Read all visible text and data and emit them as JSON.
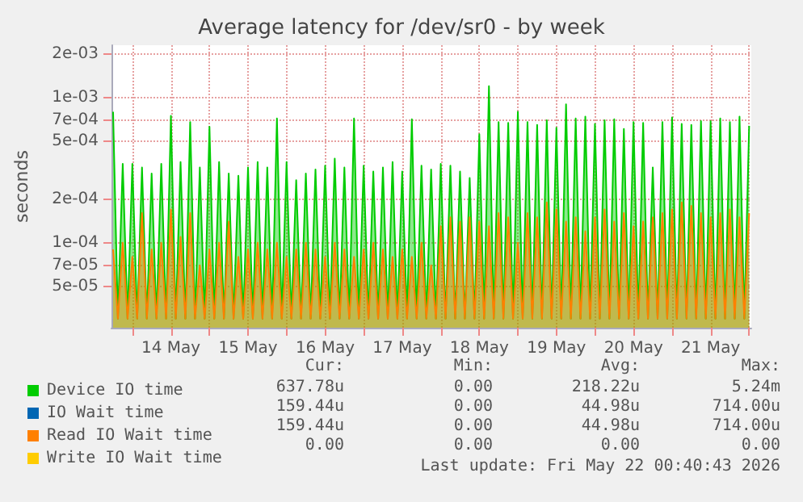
{
  "chart_data": {
    "type": "area",
    "title": "Average latency for /dev/sr0 - by week",
    "ylabel": "seconds",
    "log": "y",
    "grid": true,
    "legend": "bottom left",
    "marker": "none",
    "line_style": "solid",
    "xlim": [
      "2026-05-13T17:30",
      "2026-05-22T00:40"
    ],
    "xticks": [
      {
        "value": "2026-05-14T00:00",
        "label": null
      },
      {
        "value": "2026-05-14T12:00",
        "label": "14 May"
      },
      {
        "value": "2026-05-15T00:00",
        "label": null
      },
      {
        "value": "2026-05-15T12:00",
        "label": "15 May"
      },
      {
        "value": "2026-05-16T00:00",
        "label": null
      },
      {
        "value": "2026-05-16T12:00",
        "label": "16 May"
      },
      {
        "value": "2026-05-17T00:00",
        "label": null
      },
      {
        "value": "2026-05-17T12:00",
        "label": "17 May"
      },
      {
        "value": "2026-05-18T00:00",
        "label": null
      },
      {
        "value": "2026-05-18T12:00",
        "label": "18 May"
      },
      {
        "value": "2026-05-19T00:00",
        "label": null
      },
      {
        "value": "2026-05-19T12:00",
        "label": "19 May"
      },
      {
        "value": "2026-05-20T00:00",
        "label": null
      },
      {
        "value": "2026-05-20T12:00",
        "label": "20 May"
      },
      {
        "value": "2026-05-21T00:00",
        "label": null
      },
      {
        "value": "2026-05-21T12:00",
        "label": "21 May"
      },
      {
        "value": "2026-05-22T00:00",
        "label": null
      }
    ],
    "ylim": [
      2.6e-05,
      0.0023
    ],
    "yticks": [
      {
        "value": 5e-05,
        "label": "5e-05"
      },
      {
        "value": 7e-05,
        "label": "7e-05"
      },
      {
        "value": 0.0001,
        "label": "1e-04"
      },
      {
        "value": 0.0002,
        "label": "2e-04"
      },
      {
        "value": 0.0005,
        "label": "5e-04"
      },
      {
        "value": 0.0007,
        "label": "7e-04"
      },
      {
        "value": 0.001,
        "label": "1e-03"
      },
      {
        "value": 0.002,
        "label": "2e-03"
      }
    ],
    "x": [
      "2026-05-13T18:00",
      "2026-05-13T19:30",
      "2026-05-13T21:00",
      "2026-05-13T22:30",
      "2026-05-14T00:00",
      "2026-05-14T01:30",
      "2026-05-14T03:00",
      "2026-05-14T04:30",
      "2026-05-14T06:00",
      "2026-05-14T07:30",
      "2026-05-14T09:00",
      "2026-05-14T10:30",
      "2026-05-14T12:00",
      "2026-05-14T13:30",
      "2026-05-14T15:00",
      "2026-05-14T16:30",
      "2026-05-14T18:00",
      "2026-05-14T19:30",
      "2026-05-14T21:00",
      "2026-05-14T22:30",
      "2026-05-15T00:00",
      "2026-05-15T01:30",
      "2026-05-15T03:00",
      "2026-05-15T04:30",
      "2026-05-15T06:00",
      "2026-05-15T07:30",
      "2026-05-15T09:00",
      "2026-05-15T10:30",
      "2026-05-15T12:00",
      "2026-05-15T13:30",
      "2026-05-15T15:00",
      "2026-05-15T16:30",
      "2026-05-15T18:00",
      "2026-05-15T19:30",
      "2026-05-15T21:00",
      "2026-05-15T22:30",
      "2026-05-16T00:00",
      "2026-05-16T01:30",
      "2026-05-16T03:00",
      "2026-05-16T04:30",
      "2026-05-16T06:00",
      "2026-05-16T07:30",
      "2026-05-16T09:00",
      "2026-05-16T10:30",
      "2026-05-16T12:00",
      "2026-05-16T13:30",
      "2026-05-16T15:00",
      "2026-05-16T16:30",
      "2026-05-16T18:00",
      "2026-05-16T19:30",
      "2026-05-16T21:00",
      "2026-05-16T22:30",
      "2026-05-17T00:00",
      "2026-05-17T01:30",
      "2026-05-17T03:00",
      "2026-05-17T04:30",
      "2026-05-17T06:00",
      "2026-05-17T07:30",
      "2026-05-17T09:00",
      "2026-05-17T10:30",
      "2026-05-17T12:00",
      "2026-05-17T13:30",
      "2026-05-17T15:00",
      "2026-05-17T16:30",
      "2026-05-17T18:00",
      "2026-05-17T19:30",
      "2026-05-17T21:00",
      "2026-05-17T22:30",
      "2026-05-18T00:00",
      "2026-05-18T01:30",
      "2026-05-18T03:00",
      "2026-05-18T04:30",
      "2026-05-18T06:00",
      "2026-05-18T07:30",
      "2026-05-18T09:00",
      "2026-05-18T10:30",
      "2026-05-18T12:00",
      "2026-05-18T13:30",
      "2026-05-18T15:00",
      "2026-05-18T16:30",
      "2026-05-18T18:00",
      "2026-05-18T19:30",
      "2026-05-18T21:00",
      "2026-05-18T22:30",
      "2026-05-19T00:00",
      "2026-05-19T01:30",
      "2026-05-19T03:00",
      "2026-05-19T04:30",
      "2026-05-19T06:00",
      "2026-05-19T07:30",
      "2026-05-19T09:00",
      "2026-05-19T10:30",
      "2026-05-19T12:00",
      "2026-05-19T13:30",
      "2026-05-19T15:00",
      "2026-05-19T16:30",
      "2026-05-19T18:00",
      "2026-05-19T19:30",
      "2026-05-19T21:00",
      "2026-05-19T22:30",
      "2026-05-20T00:00",
      "2026-05-20T01:30",
      "2026-05-20T03:00",
      "2026-05-20T04:30",
      "2026-05-20T06:00",
      "2026-05-20T07:30",
      "2026-05-20T09:00",
      "2026-05-20T10:30",
      "2026-05-20T12:00",
      "2026-05-20T13:30",
      "2026-05-20T15:00",
      "2026-05-20T16:30",
      "2026-05-20T18:00",
      "2026-05-20T19:30",
      "2026-05-20T21:00",
      "2026-05-20T22:30",
      "2026-05-21T00:00",
      "2026-05-21T01:30",
      "2026-05-21T03:00",
      "2026-05-21T04:30",
      "2026-05-21T06:00",
      "2026-05-21T07:30",
      "2026-05-21T09:00",
      "2026-05-21T10:30",
      "2026-05-21T12:00",
      "2026-05-21T13:30",
      "2026-05-21T15:00",
      "2026-05-21T16:30",
      "2026-05-21T18:00",
      "2026-05-21T19:30",
      "2026-05-21T21:00",
      "2026-05-21T22:30",
      "2026-05-22T00:00"
    ],
    "series": [
      {
        "name": "Device IO time",
        "color": "#00cc00",
        "values": [
          0.0008,
          3e-05,
          0.00035,
          3e-05,
          0.00035,
          3e-05,
          0.00033,
          3e-05,
          0.0003,
          3e-05,
          0.00035,
          3e-05,
          0.00075,
          3e-05,
          0.00036,
          3e-05,
          0.00068,
          3e-05,
          0.00033,
          3e-05,
          0.00063,
          3e-05,
          0.00036,
          3e-05,
          0.0003,
          3e-05,
          0.00029,
          3e-05,
          0.00033,
          3e-05,
          0.00036,
          3e-05,
          0.00033,
          3e-05,
          0.00072,
          3e-05,
          0.00036,
          3e-05,
          0.00027,
          3e-05,
          0.0003,
          3e-05,
          0.00032,
          3e-05,
          0.00034,
          3e-05,
          0.00038,
          3e-05,
          0.00033,
          3e-05,
          0.00072,
          3e-05,
          0.00034,
          3e-05,
          0.00031,
          3e-05,
          0.00033,
          3e-05,
          0.00036,
          3e-05,
          0.00031,
          3e-05,
          0.00071,
          3e-05,
          0.00034,
          3e-05,
          0.00032,
          3e-05,
          0.00035,
          3e-05,
          0.00034,
          3e-05,
          0.00031,
          3e-05,
          0.00028,
          3e-05,
          0.00056,
          3e-05,
          0.0012,
          3e-05,
          0.00068,
          3e-05,
          0.00067,
          3e-05,
          0.0008,
          3e-05,
          0.00068,
          3e-05,
          0.00065,
          3e-05,
          0.0007,
          3e-05,
          0.00062,
          3e-05,
          0.0009,
          3e-05,
          0.00072,
          3e-05,
          0.00074,
          3e-05,
          0.00066,
          3e-05,
          0.0007,
          3e-05,
          0.00071,
          3e-05,
          0.00061,
          3e-05,
          0.00068,
          3e-05,
          0.00067,
          3e-05,
          0.00033,
          3e-05,
          0.00068,
          3e-05,
          0.00073,
          3e-05,
          0.00066,
          3e-05,
          0.00065,
          3e-05,
          0.00069,
          3e-05,
          0.00069,
          3e-05,
          0.00072,
          3e-05,
          0.00068,
          3e-05,
          0.00074,
          3e-05,
          0.00064
        ]
      },
      {
        "name": "IO Wait time",
        "color": "#0066b3",
        "values": [
          null,
          null,
          null,
          null,
          null,
          null,
          null,
          null,
          null,
          null,
          null,
          null,
          null,
          null,
          null,
          null,
          null,
          null,
          null,
          null,
          null,
          null,
          null,
          null,
          null,
          null,
          null,
          null,
          null,
          null,
          null,
          null,
          null,
          null,
          null,
          null,
          null,
          null,
          null,
          null,
          null,
          null,
          null,
          null,
          null,
          null,
          null,
          null,
          null,
          null,
          null,
          null,
          null,
          null,
          null,
          null,
          null,
          null,
          null,
          null,
          null,
          null,
          null,
          null,
          null,
          null,
          null,
          null,
          null,
          null,
          null,
          null,
          null,
          null,
          null,
          null,
          null,
          null,
          null,
          null,
          null,
          null,
          null,
          null,
          null,
          null,
          null,
          null,
          null,
          null,
          null,
          null,
          null,
          null,
          null,
          null,
          null,
          null,
          null,
          null,
          null,
          null,
          null,
          null,
          null,
          null,
          null,
          null,
          null,
          null,
          null,
          null,
          null,
          null,
          null,
          null,
          null,
          null,
          null,
          null,
          null,
          null,
          null,
          null,
          null,
          null,
          null,
          null,
          null,
          null,
          null,
          null,
          null
        ]
      },
      {
        "name": "Read IO Wait time",
        "color": "#ff8000",
        "values": [
          9e-05,
          3e-05,
          0.0001,
          3e-05,
          8e-05,
          3e-05,
          0.00016,
          3e-05,
          9e-05,
          3e-05,
          0.0001,
          3e-05,
          0.00017,
          3e-05,
          0.00011,
          3e-05,
          0.00016,
          3e-05,
          7e-05,
          3e-05,
          9e-05,
          3e-05,
          0.0001,
          3e-05,
          0.00014,
          3e-05,
          8e-05,
          3e-05,
          9e-05,
          3e-05,
          0.0001,
          3e-05,
          9e-05,
          3e-05,
          0.0001,
          3e-05,
          8e-05,
          3e-05,
          9e-05,
          3e-05,
          0.0001,
          3e-05,
          9e-05,
          3e-05,
          8e-05,
          3e-05,
          0.0001,
          3e-05,
          9e-05,
          3e-05,
          8e-05,
          3e-05,
          9e-05,
          3e-05,
          0.0001,
          3e-05,
          9e-05,
          3e-05,
          8e-05,
          3e-05,
          9e-05,
          3e-05,
          8e-05,
          3e-05,
          0.0001,
          3e-05,
          7e-05,
          3e-05,
          0.00013,
          3e-05,
          0.00015,
          3e-05,
          0.00014,
          3e-05,
          0.00015,
          3e-05,
          0.00014,
          3e-05,
          0.00013,
          3e-05,
          0.00016,
          3e-05,
          0.00015,
          3e-05,
          0.0001,
          3e-05,
          0.00016,
          3e-05,
          0.00015,
          3e-05,
          0.00019,
          3e-05,
          0.00017,
          3e-05,
          0.00014,
          3e-05,
          0.00015,
          3e-05,
          0.00012,
          3e-05,
          0.00015,
          3e-05,
          0.00017,
          3e-05,
          0.00014,
          3e-05,
          0.00016,
          3e-05,
          0.00013,
          3e-05,
          0.00014,
          3e-05,
          0.00015,
          3e-05,
          0.00016,
          3e-05,
          0.00017,
          3e-05,
          0.00019,
          3e-05,
          0.00018,
          3e-05,
          0.00016,
          3e-05,
          0.00015,
          3e-05,
          0.00016,
          3e-05,
          0.00017,
          3e-05,
          0.00015,
          3e-05,
          0.00016
        ]
      },
      {
        "name": "Write IO Wait time",
        "color": "#ffcc00",
        "values": [
          null,
          null,
          null,
          null,
          null,
          null,
          null,
          null,
          null,
          null,
          null,
          null,
          null,
          null,
          null,
          null,
          null,
          null,
          null,
          null,
          null,
          null,
          null,
          null,
          null,
          null,
          null,
          null,
          null,
          null,
          null,
          null,
          null,
          null,
          null,
          null,
          null,
          null,
          null,
          null,
          null,
          null,
          null,
          null,
          null,
          null,
          null,
          null,
          null,
          null,
          null,
          null,
          null,
          null,
          null,
          null,
          null,
          null,
          null,
          null,
          null,
          null,
          null,
          null,
          null,
          null,
          null,
          null,
          null,
          null,
          null,
          null,
          null,
          null,
          null,
          null,
          null,
          null,
          null,
          null,
          null,
          null,
          null,
          null,
          null,
          null,
          null,
          null,
          null,
          null,
          null,
          null,
          null,
          null,
          null,
          null,
          null,
          null,
          null,
          null,
          null,
          null,
          null,
          null,
          null,
          null,
          null,
          null,
          null,
          null,
          null,
          null,
          null,
          null,
          null,
          null,
          null,
          null,
          null,
          null,
          null,
          null,
          null,
          null,
          null,
          null,
          null,
          null,
          null,
          null,
          null,
          null,
          null
        ]
      }
    ],
    "annotations": [
      "Cur:",
      "Min:",
      "Avg:",
      "Max:",
      "637.78u",
      "0.00",
      "218.22u",
      "5.24m",
      "159.44u",
      "0.00",
      "44.98u",
      "714.00u",
      "159.44u",
      "0.00",
      "44.98u",
      "714.00u",
      "0.00",
      "0.00",
      "0.00",
      "0.00",
      "Last update: Fri May 22 00:40:43 2026"
    ]
  }
}
